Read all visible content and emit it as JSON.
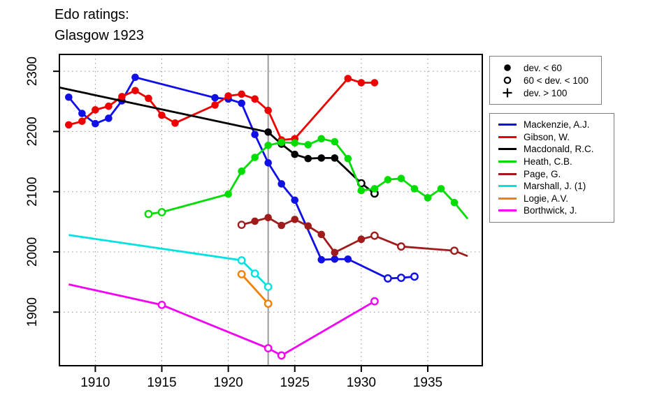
{
  "chart_data": {
    "type": "line",
    "title": "Edo ratings:",
    "subtitle": "Glasgow 1923",
    "xlabel": "",
    "ylabel": "",
    "xlim": [
      1907.3,
      1939.1
    ],
    "ylim": [
      1811,
      2328
    ],
    "xticks": [
      1910,
      1915,
      1920,
      1925,
      1930,
      1935
    ],
    "yticks": [
      1900,
      2000,
      2100,
      2200,
      2300
    ],
    "grid": true,
    "legend_position": "outside-right",
    "event_line": {
      "x": 1923,
      "color": "#9c9c9c"
    },
    "marker_legend": [
      {
        "symbol": "filled-circle",
        "label": "dev. < 60"
      },
      {
        "symbol": "open-circle",
        "label": "60 < dev. < 100"
      },
      {
        "symbol": "plus",
        "label": "dev. > 100"
      }
    ],
    "marker_meaning": {
      "f": "dev. < 60",
      "o": "60 < dev. < 100",
      "p": "dev. > 100",
      "n": "line end, no symbol"
    },
    "series": [
      {
        "name": "Mackenzie, A.J.",
        "color": "#0f0fe6",
        "points": [
          [
            1908,
            2257,
            "f"
          ],
          [
            1909,
            2230,
            "f"
          ],
          [
            1910,
            2213,
            "f"
          ],
          [
            1911,
            2222,
            "f"
          ],
          [
            1912,
            2251,
            "f"
          ],
          [
            1913,
            2290,
            "f"
          ],
          [
            1919,
            2256,
            "f"
          ],
          [
            1920,
            2254,
            "f"
          ],
          [
            1921,
            2247,
            "f"
          ],
          [
            1922,
            2195,
            "f"
          ],
          [
            1923,
            2148,
            "f"
          ],
          [
            1924,
            2113,
            "f"
          ],
          [
            1925,
            2086,
            "f"
          ],
          [
            1927,
            1987,
            "f"
          ],
          [
            1928,
            1988,
            "f"
          ],
          [
            1929,
            1988,
            "f"
          ],
          [
            1932,
            1956,
            "o"
          ],
          [
            1933,
            1957,
            "o"
          ],
          [
            1934,
            1959,
            "o"
          ]
        ]
      },
      {
        "name": "Gibson, W.",
        "color": "#ee0000",
        "points": [
          [
            1908,
            2211,
            "f"
          ],
          [
            1909,
            2217,
            "f"
          ],
          [
            1910,
            2236,
            "f"
          ],
          [
            1911,
            2242,
            "f"
          ],
          [
            1912,
            2258,
            "f"
          ],
          [
            1913,
            2268,
            "f"
          ],
          [
            1914,
            2255,
            "f"
          ],
          [
            1915,
            2227,
            "f"
          ],
          [
            1916,
            2214,
            "f"
          ],
          [
            1919,
            2244,
            "f"
          ],
          [
            1920,
            2259,
            "f"
          ],
          [
            1921,
            2262,
            "f"
          ],
          [
            1922,
            2254,
            "f"
          ],
          [
            1923,
            2235,
            "f"
          ],
          [
            1924,
            2186,
            "f"
          ],
          [
            1925,
            2188,
            "f"
          ],
          [
            1929,
            2288,
            "f"
          ],
          [
            1930,
            2281,
            "f"
          ],
          [
            1931,
            2281,
            "f"
          ]
        ]
      },
      {
        "name": "Macdonald, R.C.",
        "color": "#000000",
        "points": [
          [
            1907.3,
            2273,
            "n"
          ],
          [
            1923,
            2199,
            "f"
          ],
          [
            1924,
            2179,
            "f"
          ],
          [
            1925,
            2162,
            "f"
          ],
          [
            1926,
            2155,
            "f"
          ],
          [
            1927,
            2156,
            "f"
          ],
          [
            1928,
            2156,
            "f"
          ],
          [
            1930,
            2114,
            "o"
          ],
          [
            1931,
            2097,
            "o"
          ]
        ]
      },
      {
        "name": "Heath, C.B.",
        "color": "#00dd00",
        "points": [
          [
            1914,
            2063,
            "o"
          ],
          [
            1915,
            2066,
            "o"
          ],
          [
            1920,
            2096,
            "f"
          ],
          [
            1921,
            2134,
            "f"
          ],
          [
            1922,
            2157,
            "f"
          ],
          [
            1923,
            2177,
            "f"
          ],
          [
            1924,
            2182,
            "f"
          ],
          [
            1925,
            2181,
            "f"
          ],
          [
            1926,
            2178,
            "f"
          ],
          [
            1927,
            2188,
            "f"
          ],
          [
            1928,
            2183,
            "f"
          ],
          [
            1929,
            2155,
            "f"
          ],
          [
            1930,
            2102,
            "f"
          ],
          [
            1931,
            2105,
            "f"
          ],
          [
            1932,
            2120,
            "f"
          ],
          [
            1933,
            2122,
            "f"
          ],
          [
            1934,
            2105,
            "f"
          ],
          [
            1935,
            2090,
            "f"
          ],
          [
            1936,
            2105,
            "f"
          ],
          [
            1937,
            2082,
            "f"
          ],
          [
            1938,
            2055,
            "n"
          ]
        ]
      },
      {
        "name": "Page, G.",
        "color": "#a01c1c",
        "points": [
          [
            1921,
            2045,
            "o"
          ],
          [
            1922,
            2051,
            "f"
          ],
          [
            1923,
            2057,
            "f"
          ],
          [
            1924,
            2044,
            "f"
          ],
          [
            1925,
            2054,
            "f"
          ],
          [
            1926,
            2043,
            "f"
          ],
          [
            1927,
            2029,
            "f"
          ],
          [
            1928,
            1999,
            "f"
          ],
          [
            1930,
            2021,
            "f"
          ],
          [
            1931,
            2027,
            "o"
          ],
          [
            1933,
            2009,
            "o"
          ],
          [
            1937,
            2002,
            "o"
          ],
          [
            1938,
            1993,
            "n"
          ]
        ]
      },
      {
        "name": "Marshall, J. (1)",
        "color": "#00e2e2",
        "points": [
          [
            1908,
            2028,
            "n"
          ],
          [
            1921,
            1986,
            "o"
          ],
          [
            1922,
            1964,
            "o"
          ],
          [
            1923,
            1942,
            "o"
          ]
        ]
      },
      {
        "name": "Logie, A.V.",
        "color": "#f57f00",
        "points": [
          [
            1921,
            1963,
            "o"
          ],
          [
            1923,
            1914,
            "o"
          ]
        ]
      },
      {
        "name": "Borthwick, J.",
        "color": "#f400f4",
        "points": [
          [
            1908,
            1946,
            "n"
          ],
          [
            1915,
            1912,
            "o"
          ],
          [
            1923,
            1840,
            "o"
          ],
          [
            1924,
            1828,
            "o"
          ],
          [
            1931,
            1918,
            "o"
          ]
        ]
      }
    ]
  }
}
